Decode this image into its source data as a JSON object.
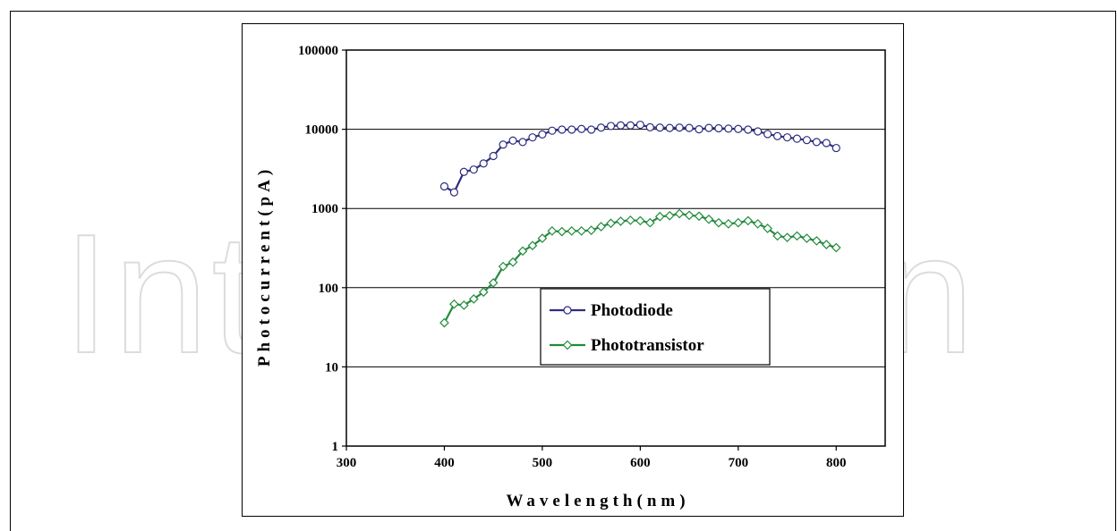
{
  "watermark": {
    "text": "IntechOpen"
  },
  "chart_data": {
    "type": "line",
    "title": "",
    "xlabel": "Wavelength(nm)",
    "ylabel": "Photocurrent(pA)",
    "xlim": [
      300,
      850
    ],
    "ylim": [
      1,
      100000
    ],
    "yscale": "log",
    "x_ticks": [
      300,
      400,
      500,
      600,
      700,
      800
    ],
    "y_ticks": [
      1,
      10,
      100,
      1000,
      10000,
      100000
    ],
    "x_tick_labels": [
      "300",
      "400",
      "500",
      "600",
      "700",
      "800"
    ],
    "y_tick_labels": [
      "1",
      "10",
      "100",
      "1000",
      "10000",
      "100000"
    ],
    "grid": "horizontal-major",
    "legend_position": "center-inside",
    "series": [
      {
        "name": "Photodiode",
        "color": "#2e2e80",
        "marker": "circle",
        "x": [
          400,
          410,
          420,
          430,
          440,
          450,
          460,
          470,
          480,
          490,
          500,
          510,
          520,
          530,
          540,
          550,
          560,
          570,
          580,
          590,
          600,
          610,
          620,
          630,
          640,
          650,
          660,
          670,
          680,
          690,
          700,
          710,
          720,
          730,
          740,
          750,
          760,
          770,
          780,
          790,
          800
        ],
        "y": [
          1900,
          1600,
          2900,
          3100,
          3700,
          4600,
          6400,
          7200,
          6900,
          7900,
          8600,
          9600,
          9900,
          9900,
          10100,
          9900,
          10500,
          11000,
          11200,
          11200,
          11400,
          10600,
          10500,
          10400,
          10500,
          10400,
          10000,
          10400,
          10300,
          10200,
          10100,
          9900,
          9400,
          8700,
          8200,
          7900,
          7600,
          7300,
          6900,
          6700,
          5800
        ]
      },
      {
        "name": "Phototransistor",
        "color": "#228b3c",
        "marker": "diamond",
        "x": [
          400,
          410,
          420,
          430,
          440,
          450,
          460,
          470,
          480,
          490,
          500,
          510,
          520,
          530,
          540,
          550,
          560,
          570,
          580,
          590,
          600,
          610,
          620,
          630,
          640,
          650,
          660,
          670,
          680,
          690,
          700,
          710,
          720,
          730,
          740,
          750,
          760,
          770,
          780,
          790,
          800
        ],
        "y": [
          36,
          62,
          60,
          72,
          88,
          115,
          185,
          210,
          290,
          340,
          420,
          520,
          510,
          520,
          520,
          530,
          590,
          650,
          690,
          710,
          700,
          660,
          790,
          810,
          860,
          820,
          800,
          730,
          660,
          640,
          660,
          700,
          640,
          560,
          450,
          430,
          450,
          420,
          390,
          350,
          320
        ]
      }
    ]
  }
}
